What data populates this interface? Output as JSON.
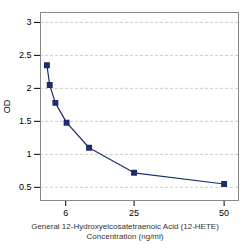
{
  "chart_data": {
    "type": "line",
    "xlabel": "General 12-Hydroxyeicosatetraenoic Acid (12-HETE)\nConcentration (ng/ml)",
    "ylabel": "OD",
    "x": [
      0.78,
      1.56,
      3.13,
      6.25,
      12.5,
      25,
      50
    ],
    "values": [
      2.35,
      2.05,
      1.78,
      1.48,
      1.1,
      0.72,
      0.55
    ],
    "color": "#1a2e6b",
    "marker": "square",
    "xlim": [
      -1,
      54
    ],
    "xticks": [
      6,
      25,
      50
    ],
    "ylim": [
      0.3,
      3.15
    ],
    "yticks": [
      0.5,
      1,
      1.5,
      2,
      2.5,
      3
    ],
    "grid": "y"
  }
}
